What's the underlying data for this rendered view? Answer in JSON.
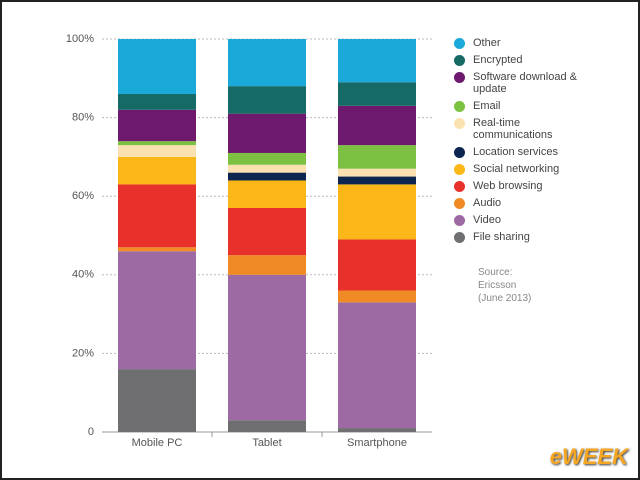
{
  "chart_data": {
    "type": "stacked_bar",
    "categories": [
      "Mobile PC",
      "Tablet",
      "Smartphone"
    ],
    "series": [
      {
        "name": "Other",
        "color": "#1aa9d8",
        "values": [
          14,
          12,
          11
        ]
      },
      {
        "name": "Encrypted",
        "color": "#156a66",
        "values": [
          4,
          7,
          6
        ]
      },
      {
        "name": "Software download & update",
        "color": "#6d1a6e",
        "values": [
          8,
          10,
          10
        ]
      },
      {
        "name": "Email",
        "color": "#7dc142",
        "values": [
          1,
          3,
          6
        ]
      },
      {
        "name": "Real-time communications",
        "color": "#fbe1b0",
        "values": [
          3,
          2,
          2
        ]
      },
      {
        "name": "Location services",
        "color": "#0d2650",
        "values": [
          0,
          2,
          2
        ]
      },
      {
        "name": "Social networking",
        "color": "#fbb718",
        "values": [
          7,
          7,
          14
        ]
      },
      {
        "name": "Web browsing",
        "color": "#e8312a",
        "values": [
          16,
          12,
          13
        ]
      },
      {
        "name": "Audio",
        "color": "#f08a24",
        "values": [
          1,
          5,
          3
        ]
      },
      {
        "name": "Video",
        "color": "#9e6aa3",
        "values": [
          30,
          37,
          32
        ]
      },
      {
        "name": "File sharing",
        "color": "#6f6f71",
        "values": [
          16,
          3,
          1
        ]
      }
    ],
    "ylim": [
      0,
      100
    ],
    "yticks": [
      0,
      {
        "value": 20,
        "label": "20%"
      },
      {
        "value": 40,
        "label": "40%"
      },
      {
        "value": 60,
        "label": "60%"
      },
      {
        "value": 80,
        "label": "80%"
      },
      {
        "value": 100,
        "label": "100%"
      }
    ],
    "grid": true,
    "source": "Source: Ericsson",
    "source_date": "(June 2013)",
    "logo": "eWEEK"
  }
}
